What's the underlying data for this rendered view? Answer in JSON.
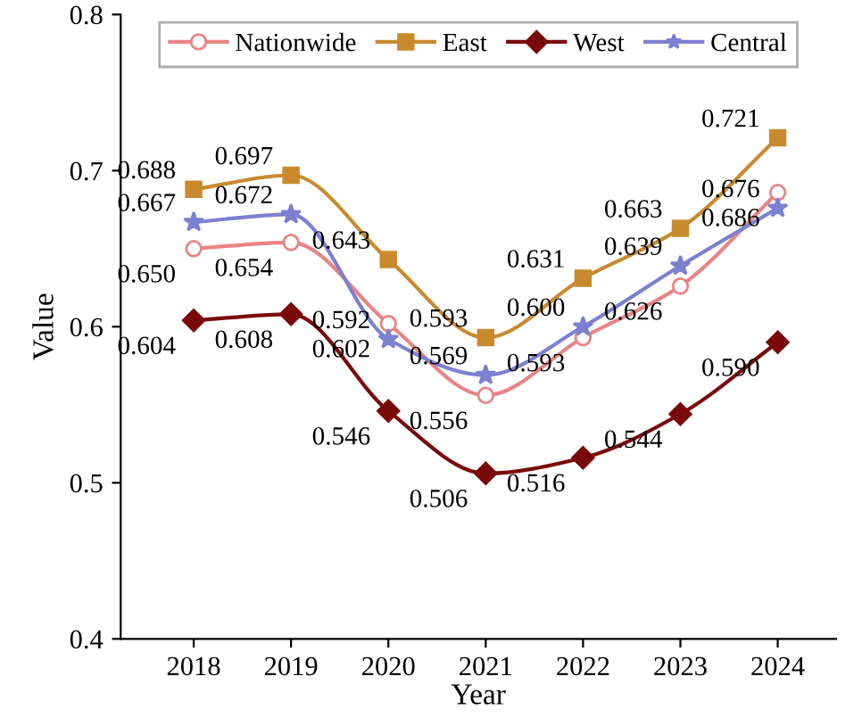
{
  "chart_data": {
    "type": "line",
    "xlabel": "Year",
    "ylabel": "Value",
    "categories": [
      "2018",
      "2019",
      "2020",
      "2021",
      "2022",
      "2023",
      "2024"
    ],
    "series": [
      {
        "name": "Nationwide",
        "color": "#e98484",
        "marker": "circle",
        "values": [
          0.65,
          0.654,
          0.602,
          0.556,
          0.593,
          0.626,
          0.686
        ],
        "value_labels": [
          "0.650",
          "0.654",
          "0.602",
          "0.556",
          "0.593",
          "0.626",
          "0.686"
        ]
      },
      {
        "name": "East",
        "color": "#c98a2e",
        "marker": "square",
        "values": [
          0.688,
          0.697,
          0.643,
          0.593,
          0.631,
          0.663,
          0.721
        ],
        "value_labels": [
          "0.688",
          "0.697",
          "0.643",
          "0.593",
          "0.631",
          "0.663",
          "0.721"
        ]
      },
      {
        "name": "West",
        "color": "#7a0a0a",
        "marker": "diamond",
        "values": [
          0.604,
          0.608,
          0.546,
          0.506,
          0.516,
          0.544,
          0.59
        ],
        "value_labels": [
          "0.604",
          "0.608",
          "0.546",
          "0.506",
          "0.516",
          "0.544",
          "0.590"
        ]
      },
      {
        "name": "Central",
        "color": "#7c80d0",
        "marker": "star",
        "values": [
          0.667,
          0.672,
          0.592,
          0.569,
          0.6,
          0.639,
          0.676
        ],
        "value_labels": [
          "0.667",
          "0.672",
          "0.592",
          "0.569",
          "0.600",
          "0.639",
          "0.676"
        ]
      }
    ],
    "ylim": [
      0.4,
      0.8
    ],
    "yticks": [
      0.4,
      0.5,
      0.6,
      0.7,
      0.8
    ],
    "legend": "top",
    "grid": false,
    "line_style": "solid"
  }
}
